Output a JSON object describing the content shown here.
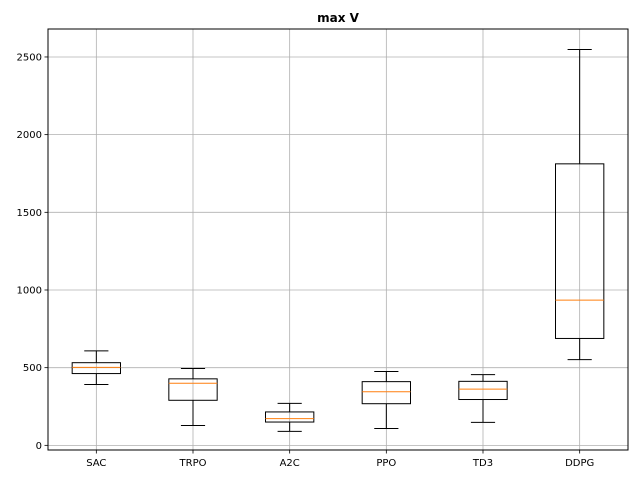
{
  "chart_data": {
    "type": "box",
    "title": "max V",
    "xlabel": "",
    "ylabel": "",
    "categories": [
      "SAC",
      "TRPO",
      "A2C",
      "PPO",
      "TD3",
      "DDPG"
    ],
    "boxes": [
      {
        "label": "SAC",
        "whisker_low": 392,
        "q1": 462,
        "median": 502,
        "q3": 532,
        "whisker_high": 608
      },
      {
        "label": "TRPO",
        "whisker_low": 128,
        "q1": 290,
        "median": 400,
        "q3": 428,
        "whisker_high": 495
      },
      {
        "label": "A2C",
        "whisker_low": 90,
        "q1": 150,
        "median": 172,
        "q3": 215,
        "whisker_high": 270
      },
      {
        "label": "PPO",
        "whisker_low": 108,
        "q1": 268,
        "median": 345,
        "q3": 410,
        "whisker_high": 475
      },
      {
        "label": "TD3",
        "whisker_low": 148,
        "q1": 295,
        "median": 362,
        "q3": 412,
        "whisker_high": 455
      },
      {
        "label": "DDPG",
        "whisker_low": 552,
        "q1": 688,
        "median": 935,
        "q3": 1812,
        "whisker_high": 2548
      }
    ],
    "yticks": [
      0,
      500,
      1000,
      1500,
      2000,
      2500
    ],
    "ylim": [
      -30,
      2680
    ],
    "grid": true,
    "colors": {
      "box": "#000000",
      "median": "#ff7f0e",
      "grid": "#b0b0b0"
    }
  }
}
